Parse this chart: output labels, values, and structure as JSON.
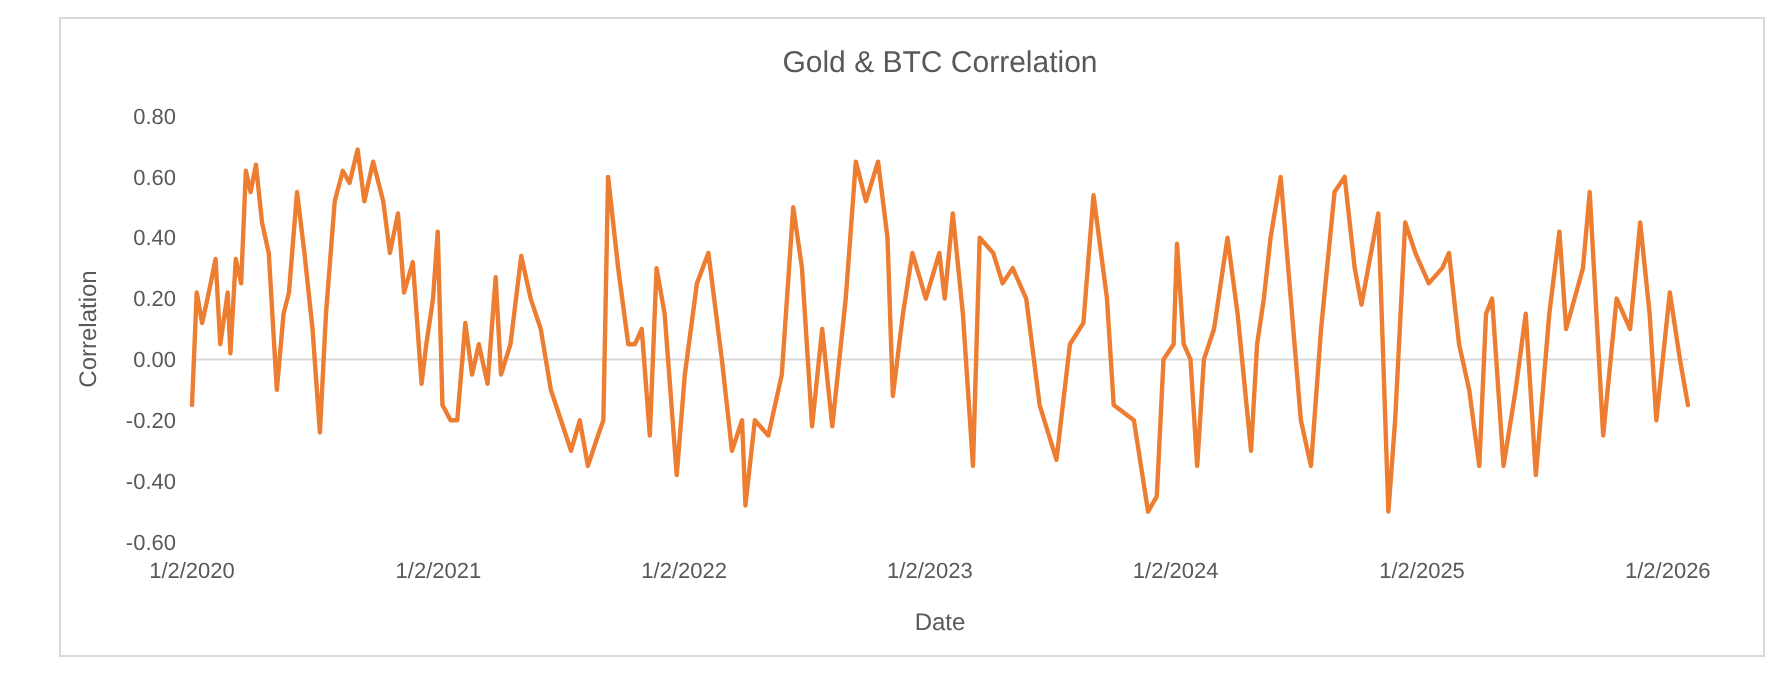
{
  "chart_data": {
    "type": "line",
    "title": "Gold & BTC Correlation",
    "xlabel": "Date",
    "ylabel": "Correlation",
    "xlim": [
      "2020-01-02",
      "2026-02-01"
    ],
    "xticks": [
      {
        "value": "2020-01-02",
        "label": "1/2/2020"
      },
      {
        "value": "2021-01-02",
        "label": "1/2/2021"
      },
      {
        "value": "2022-01-02",
        "label": "1/2/2022"
      },
      {
        "value": "2023-01-02",
        "label": "1/2/2023"
      },
      {
        "value": "2024-01-02",
        "label": "1/2/2024"
      },
      {
        "value": "2025-01-02",
        "label": "1/2/2025"
      },
      {
        "value": "2026-01-02",
        "label": "1/2/2026"
      }
    ],
    "ylim": [
      -0.6,
      0.8
    ],
    "yticks": [
      {
        "value": -0.6,
        "label": "-0.60"
      },
      {
        "value": -0.4,
        "label": "-0.40"
      },
      {
        "value": -0.2,
        "label": "-0.20"
      },
      {
        "value": 0,
        "label": "0.00"
      },
      {
        "value": 0.2,
        "label": "0.20"
      },
      {
        "value": 0.4,
        "label": "0.40"
      },
      {
        "value": 0.6,
        "label": "0.60"
      },
      {
        "value": 0.8,
        "label": "0.80"
      }
    ],
    "ref_lines": [
      {
        "axis": "y",
        "value": 0,
        "color": "#d9d9d9"
      }
    ],
    "marker": "none",
    "line_style": "solid",
    "x": [
      "2020-01-02",
      "2020-01-09",
      "2020-01-17",
      "2020-01-27",
      "2020-02-06",
      "2020-02-13",
      "2020-02-24",
      "2020-02-28",
      "2020-03-07",
      "2020-03-15",
      "2020-03-22",
      "2020-03-29",
      "2020-04-06",
      "2020-04-15",
      "2020-04-25",
      "2020-05-07",
      "2020-05-17",
      "2020-05-25",
      "2020-06-06",
      "2020-06-17",
      "2020-06-29",
      "2020-07-10",
      "2020-07-19",
      "2020-08-01",
      "2020-08-13",
      "2020-08-23",
      "2020-09-04",
      "2020-09-14",
      "2020-09-27",
      "2020-10-12",
      "2020-10-22",
      "2020-11-03",
      "2020-11-12",
      "2020-11-25",
      "2020-12-08",
      "2020-12-15",
      "2020-12-25",
      "2021-01-01",
      "2021-01-08",
      "2021-01-20",
      "2021-01-30",
      "2021-02-11",
      "2021-02-21",
      "2021-03-03",
      "2021-03-16",
      "2021-03-28",
      "2021-04-05",
      "2021-04-19",
      "2021-05-05",
      "2021-05-19",
      "2021-06-03",
      "2021-06-18",
      "2021-07-03",
      "2021-07-18",
      "2021-07-31",
      "2021-08-12",
      "2021-08-27",
      "2021-09-04",
      "2021-09-11",
      "2021-09-26",
      "2021-10-11",
      "2021-10-21",
      "2021-10-31",
      "2021-11-12",
      "2021-11-22",
      "2021-12-04",
      "2021-12-22",
      "2022-01-03",
      "2022-01-21",
      "2022-02-07",
      "2022-02-27",
      "2022-03-14",
      "2022-03-29",
      "2022-04-03",
      "2022-04-17",
      "2022-05-07",
      "2022-05-27",
      "2022-06-13",
      "2022-06-26",
      "2022-07-11",
      "2022-07-26",
      "2022-08-10",
      "2022-08-30",
      "2022-09-14",
      "2022-09-29",
      "2022-10-17",
      "2022-10-31",
      "2022-11-08",
      "2022-11-23",
      "2022-12-07",
      "2022-12-27",
      "2023-01-16",
      "2023-01-24",
      "2023-02-05",
      "2023-02-20",
      "2023-03-07",
      "2023-03-17",
      "2023-04-06",
      "2023-04-20",
      "2023-05-05",
      "2023-05-25",
      "2023-06-14",
      "2023-07-09",
      "2023-07-29",
      "2023-08-18",
      "2023-09-02",
      "2023-09-22",
      "2023-10-02",
      "2023-11-01",
      "2023-11-22",
      "2023-12-05",
      "2023-12-15",
      "2023-12-30",
      "2024-01-04",
      "2024-01-14",
      "2024-01-24",
      "2024-02-03",
      "2024-02-13",
      "2024-02-28",
      "2024-03-19",
      "2024-04-03",
      "2024-04-23",
      "2024-05-02",
      "2024-05-12",
      "2024-05-22",
      "2024-06-06",
      "2024-06-21",
      "2024-07-06",
      "2024-07-21",
      "2024-08-05",
      "2024-08-25",
      "2024-09-09",
      "2024-09-24",
      "2024-10-04",
      "2024-10-29",
      "2024-11-13",
      "2024-11-23",
      "2024-12-08",
      "2024-12-23",
      "2025-01-12",
      "2025-02-01",
      "2025-02-11",
      "2025-02-26",
      "2025-03-13",
      "2025-03-28",
      "2025-04-07",
      "2025-04-16",
      "2025-05-03",
      "2025-05-21",
      "2025-06-05",
      "2025-06-20",
      "2025-07-10",
      "2025-07-25",
      "2025-08-04",
      "2025-08-29",
      "2025-09-08",
      "2025-09-28",
      "2025-10-18",
      "2025-11-07",
      "2025-11-22",
      "2025-12-06",
      "2025-12-16",
      "2026-01-05",
      "2026-01-20",
      "2026-02-01"
    ],
    "series": [
      {
        "color": "#ed7d31",
        "values": [
          -0.15,
          0.22,
          0.12,
          0.22,
          0.33,
          0.05,
          0.22,
          0.02,
          0.33,
          0.25,
          0.62,
          0.55,
          0.64,
          0.45,
          0.35,
          -0.1,
          0.15,
          0.22,
          0.55,
          0.35,
          0.1,
          -0.24,
          0.15,
          0.52,
          0.62,
          0.58,
          0.69,
          0.52,
          0.65,
          0.52,
          0.35,
          0.48,
          0.22,
          0.32,
          -0.08,
          0.05,
          0.2,
          0.42,
          -0.15,
          -0.2,
          -0.2,
          0.12,
          -0.05,
          0.05,
          -0.08,
          0.27,
          -0.05,
          0.05,
          0.34,
          0.2,
          0.1,
          -0.1,
          -0.2,
          -0.3,
          -0.2,
          -0.35,
          -0.25,
          -0.2,
          0.6,
          0.3,
          0.05,
          0.05,
          0.1,
          -0.25,
          0.3,
          0.15,
          -0.38,
          -0.05,
          0.25,
          0.35,
          0.0,
          -0.3,
          -0.2,
          -0.48,
          -0.2,
          -0.25,
          -0.05,
          0.5,
          0.3,
          -0.22,
          0.1,
          -0.22,
          0.2,
          0.65,
          0.52,
          0.65,
          0.4,
          -0.12,
          0.15,
          0.35,
          0.2,
          0.35,
          0.2,
          0.48,
          0.15,
          -0.35,
          0.4,
          0.35,
          0.25,
          0.3,
          0.2,
          -0.15,
          -0.33,
          0.05,
          0.12,
          0.54,
          0.2,
          -0.15,
          -0.2,
          -0.5,
          -0.45,
          0.0,
          0.05,
          0.38,
          0.05,
          0.0,
          -0.35,
          0.0,
          0.1,
          0.4,
          0.15,
          -0.3,
          0.05,
          0.2,
          0.4,
          0.6,
          0.2,
          -0.2,
          -0.35,
          0.1,
          0.55,
          0.6,
          0.3,
          0.18,
          0.48,
          -0.5,
          -0.2,
          0.45,
          0.35,
          0.25,
          0.3,
          0.35,
          0.05,
          -0.1,
          -0.35,
          0.15,
          0.2,
          -0.35,
          -0.1,
          0.15,
          -0.38,
          0.15,
          0.42,
          0.1,
          0.3,
          0.55,
          -0.25,
          0.2,
          0.1,
          0.45,
          0.15,
          -0.2,
          0.22,
          0.0,
          -0.15
        ]
      }
    ]
  }
}
